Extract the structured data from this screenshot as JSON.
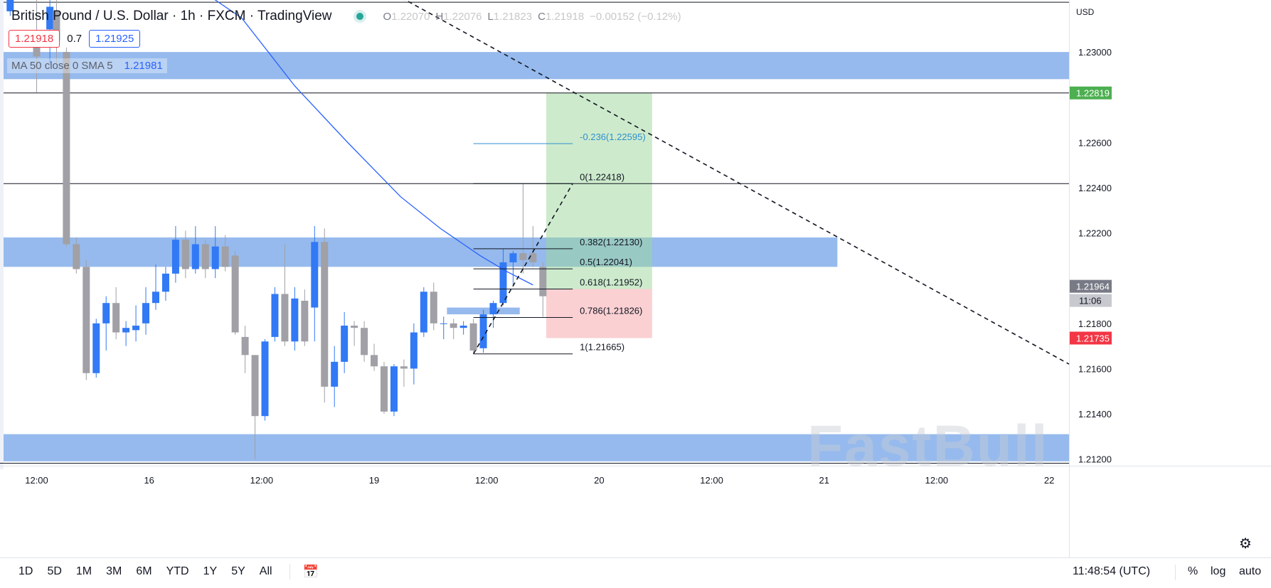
{
  "header": {
    "title": "British Pound / U.S. Dollar · 1h · FXCM · TradingView",
    "ohlc": [
      {
        "k": "O",
        "v": "1.22070"
      },
      {
        "k": "H",
        "v": "1.22076"
      },
      {
        "k": "L",
        "v": "1.21823"
      },
      {
        "k": "C",
        "v": "1.21918"
      },
      {
        "k": "",
        "v": "−0.00152 (−0.12%)"
      }
    ],
    "sell_price": "1.21918",
    "spread": "0.7",
    "buy_price": "1.21925"
  },
  "ma_legend": {
    "label": "MA 50 close 0 SMA 5",
    "value": "1.21981"
  },
  "currency": "USD",
  "watermark": "FastBull",
  "colors": {
    "up": "#3179f5",
    "down": "#a0a0a6",
    "zone": "#6e9fe6",
    "profit": "#9cd89a",
    "loss": "#f5a1a8",
    "ma": "#2962ff",
    "fib": "#131722",
    "fib_ext": "#2f8fcf",
    "badge_green": "#4caf50",
    "badge_grey": "#787b86",
    "badge_red": "#f23645"
  },
  "timeframes": [
    "1D",
    "5D",
    "1M",
    "3M",
    "6M",
    "YTD",
    "1Y",
    "5Y",
    "All"
  ],
  "clock": "11:48:54 (UTC)",
  "right_controls": {
    "percent": "%",
    "log": "log",
    "auto": "auto"
  },
  "chart_data": {
    "type": "candlestick",
    "symbol": "GBPUSD",
    "interval": "1h",
    "x_unit": "hour",
    "xlim": [
      0,
      161
    ],
    "ylim": [
      1.2118,
      1.2323
    ],
    "y_ticks": [
      "1.21200",
      "1.21400",
      "1.21600",
      "1.21800",
      "1.22200",
      "1.22400",
      "1.22600",
      "1.23000"
    ],
    "x_ticks": [
      {
        "x": 5,
        "label": "12:00"
      },
      {
        "x": 22,
        "label": "16"
      },
      {
        "x": 39,
        "label": "12:00"
      },
      {
        "x": 56,
        "label": "19"
      },
      {
        "x": 73,
        "label": "12:00"
      },
      {
        "x": 90,
        "label": "20"
      },
      {
        "x": 107,
        "label": "12:00"
      },
      {
        "x": 124,
        "label": "21"
      },
      {
        "x": 141,
        "label": "12:00"
      },
      {
        "x": 158,
        "label": "22"
      }
    ],
    "candles": [
      {
        "x": 1,
        "o": 1.2318,
        "h": 1.233,
        "l": 1.2316,
        "c": 1.2325
      },
      {
        "x": 5,
        "o": 1.2305,
        "h": 1.233,
        "l": 1.2282,
        "c": 1.2298
      },
      {
        "x": 7,
        "o": 1.231,
        "h": 1.233,
        "l": 1.2295,
        "c": 1.232
      },
      {
        "x": 8,
        "o": 1.2318,
        "h": 1.233,
        "l": 1.2295,
        "c": 1.2305
      },
      {
        "x": 9.5,
        "o": 1.23,
        "h": 1.2302,
        "l": 1.2214,
        "c": 1.2215
      },
      {
        "x": 11,
        "o": 1.2215,
        "h": 1.2218,
        "l": 1.2202,
        "c": 1.2204
      },
      {
        "x": 12.5,
        "o": 1.2205,
        "h": 1.2208,
        "l": 1.2155,
        "c": 1.2158
      },
      {
        "x": 14,
        "o": 1.2158,
        "h": 1.2182,
        "l": 1.2156,
        "c": 1.218
      },
      {
        "x": 15.5,
        "o": 1.218,
        "h": 1.2192,
        "l": 1.2168,
        "c": 1.2189
      },
      {
        "x": 17,
        "o": 1.2189,
        "h": 1.2196,
        "l": 1.2173,
        "c": 1.2176
      },
      {
        "x": 18.5,
        "o": 1.2176,
        "h": 1.2181,
        "l": 1.217,
        "c": 1.2178
      },
      {
        "x": 20,
        "o": 1.2177,
        "h": 1.2188,
        "l": 1.2172,
        "c": 1.2179
      },
      {
        "x": 21.5,
        "o": 1.218,
        "h": 1.2196,
        "l": 1.2175,
        "c": 1.2189
      },
      {
        "x": 23,
        "o": 1.2189,
        "h": 1.2206,
        "l": 1.2186,
        "c": 1.2194
      },
      {
        "x": 24.5,
        "o": 1.2194,
        "h": 1.2205,
        "l": 1.219,
        "c": 1.2202
      },
      {
        "x": 26,
        "o": 1.2202,
        "h": 1.2223,
        "l": 1.2198,
        "c": 1.2217
      },
      {
        "x": 27.5,
        "o": 1.2217,
        "h": 1.2221,
        "l": 1.22,
        "c": 1.2204
      },
      {
        "x": 29,
        "o": 1.2204,
        "h": 1.2223,
        "l": 1.2202,
        "c": 1.2215
      },
      {
        "x": 30.5,
        "o": 1.2215,
        "h": 1.2217,
        "l": 1.22,
        "c": 1.2204
      },
      {
        "x": 32,
        "o": 1.2204,
        "h": 1.2223,
        "l": 1.22,
        "c": 1.2214
      },
      {
        "x": 33.5,
        "o": 1.2214,
        "h": 1.2219,
        "l": 1.2203,
        "c": 1.2205
      },
      {
        "x": 35,
        "o": 1.221,
        "h": 1.2212,
        "l": 1.2175,
        "c": 1.2176
      },
      {
        "x": 36.5,
        "o": 1.2174,
        "h": 1.2179,
        "l": 1.2158,
        "c": 1.2166
      },
      {
        "x": 38,
        "o": 1.2166,
        "h": 1.2166,
        "l": 1.212,
        "c": 1.2139
      },
      {
        "x": 39.5,
        "o": 1.2139,
        "h": 1.2173,
        "l": 1.2137,
        "c": 1.2172
      },
      {
        "x": 41,
        "o": 1.2174,
        "h": 1.2196,
        "l": 1.2172,
        "c": 1.2193
      },
      {
        "x": 42.5,
        "o": 1.2193,
        "h": 1.2215,
        "l": 1.217,
        "c": 1.2172
      },
      {
        "x": 44,
        "o": 1.2172,
        "h": 1.2196,
        "l": 1.2168,
        "c": 1.2191
      },
      {
        "x": 45.5,
        "o": 1.219,
        "h": 1.2195,
        "l": 1.217,
        "c": 1.2172
      },
      {
        "x": 47,
        "o": 1.2187,
        "h": 1.2223,
        "l": 1.2172,
        "c": 1.2216
      },
      {
        "x": 48.5,
        "o": 1.2216,
        "h": 1.2222,
        "l": 1.2145,
        "c": 1.2152
      },
      {
        "x": 50,
        "o": 1.2152,
        "h": 1.217,
        "l": 1.2143,
        "c": 1.2163
      },
      {
        "x": 51.5,
        "o": 1.2163,
        "h": 1.2185,
        "l": 1.2158,
        "c": 1.2179
      },
      {
        "x": 53,
        "o": 1.2179,
        "h": 1.2181,
        "l": 1.217,
        "c": 1.2178
      },
      {
        "x": 54.5,
        "o": 1.2178,
        "h": 1.2181,
        "l": 1.2163,
        "c": 1.2166
      },
      {
        "x": 56,
        "o": 1.2166,
        "h": 1.2171,
        "l": 1.2159,
        "c": 1.2161
      },
      {
        "x": 57.5,
        "o": 1.2161,
        "h": 1.2163,
        "l": 1.214,
        "c": 1.2141
      },
      {
        "x": 59,
        "o": 1.2141,
        "h": 1.2162,
        "l": 1.2139,
        "c": 1.2161
      },
      {
        "x": 60.5,
        "o": 1.2161,
        "h": 1.2164,
        "l": 1.2152,
        "c": 1.216
      },
      {
        "x": 62,
        "o": 1.216,
        "h": 1.218,
        "l": 1.2153,
        "c": 1.2176
      },
      {
        "x": 63.5,
        "o": 1.2176,
        "h": 1.2196,
        "l": 1.2174,
        "c": 1.2194
      },
      {
        "x": 65,
        "o": 1.2194,
        "h": 1.2198,
        "l": 1.2177,
        "c": 1.218
      },
      {
        "x": 66.5,
        "o": 1.218,
        "h": 1.2183,
        "l": 1.2173,
        "c": 1.218
      },
      {
        "x": 68,
        "o": 1.218,
        "h": 1.2182,
        "l": 1.2173,
        "c": 1.2178
      },
      {
        "x": 69.5,
        "o": 1.2178,
        "h": 1.2181,
        "l": 1.2175,
        "c": 1.2179
      },
      {
        "x": 71,
        "o": 1.218,
        "h": 1.2182,
        "l": 1.2167,
        "c": 1.2168
      },
      {
        "x": 72.5,
        "o": 1.2169,
        "h": 1.2186,
        "l": 1.2167,
        "c": 1.2184
      },
      {
        "x": 74,
        "o": 1.2184,
        "h": 1.219,
        "l": 1.2178,
        "c": 1.2189
      },
      {
        "x": 75.5,
        "o": 1.2189,
        "h": 1.2213,
        "l": 1.2188,
        "c": 1.2207
      },
      {
        "x": 77,
        "o": 1.2207,
        "h": 1.2212,
        "l": 1.2197,
        "c": 1.2211
      },
      {
        "x": 78.5,
        "o": 1.2211,
        "h": 1.2242,
        "l": 1.2202,
        "c": 1.2208
      },
      {
        "x": 80,
        "o": 1.2211,
        "h": 1.2223,
        "l": 1.2205,
        "c": 1.2207
      },
      {
        "x": 81.5,
        "o": 1.2205,
        "h": 1.2207,
        "l": 1.2183,
        "c": 1.2192
      }
    ],
    "zones": [
      {
        "y1": 1.23,
        "y2": 1.2288,
        "x1": 0,
        "x2": 161
      },
      {
        "y1": 1.2218,
        "y2": 1.2205,
        "x1": 0,
        "x2": 126
      },
      {
        "y1": 1.2187,
        "y2": 1.2184,
        "x1": 67,
        "x2": 78
      },
      {
        "y1": 1.2131,
        "y2": 1.2119,
        "x1": 0,
        "x2": 161
      }
    ],
    "h_lines": [
      1.2322,
      1.22819,
      1.22418
    ],
    "ma": {
      "name": "MA 50 close 0 SMA 5",
      "points": [
        [
          28,
          1.2331
        ],
        [
          36,
          1.2315
        ],
        [
          44,
          1.2285
        ],
        [
          52,
          1.226
        ],
        [
          60,
          1.2236
        ],
        [
          66,
          1.2222
        ],
        [
          72,
          1.221
        ],
        [
          76,
          1.2203
        ],
        [
          80,
          1.2197
        ]
      ]
    },
    "trend_line": [
      [
        57,
        1.2329
      ],
      [
        161,
        1.2162
      ]
    ],
    "fib_base_line": [
      [
        71,
        1.21665
      ],
      [
        86,
        1.22418
      ]
    ],
    "fib_levels": [
      {
        "ratio": "-0.236",
        "price": 1.22595,
        "label": "-0.236(1.22595)",
        "ext": true
      },
      {
        "ratio": "0",
        "price": 1.22418,
        "label": "0(1.22418)",
        "ext": false
      },
      {
        "ratio": "0.382",
        "price": 1.2213,
        "label": "0.382(1.22130)",
        "ext": false
      },
      {
        "ratio": "0.5",
        "price": 1.22041,
        "label": "0.5(1.22041)",
        "ext": false
      },
      {
        "ratio": "0.618",
        "price": 1.21952,
        "label": "0.618(1.21952)",
        "ext": false
      },
      {
        "ratio": "0.786",
        "price": 1.21826,
        "label": "0.786(1.21826)",
        "ext": false
      },
      {
        "ratio": "1",
        "price": 1.21665,
        "label": "1(1.21665)",
        "ext": false
      }
    ],
    "position": {
      "x1": 82,
      "x2": 98,
      "entry": 1.21952,
      "target": 1.22819,
      "stop": 1.21735
    },
    "price_badges": [
      {
        "price": 1.22819,
        "label": "1.22819",
        "color": "green"
      },
      {
        "price": 1.21964,
        "label": "1.21964",
        "color": "grey"
      },
      {
        "price": 1.21735,
        "label": "1.21735",
        "color": "red"
      }
    ],
    "countdown": "11:06"
  }
}
